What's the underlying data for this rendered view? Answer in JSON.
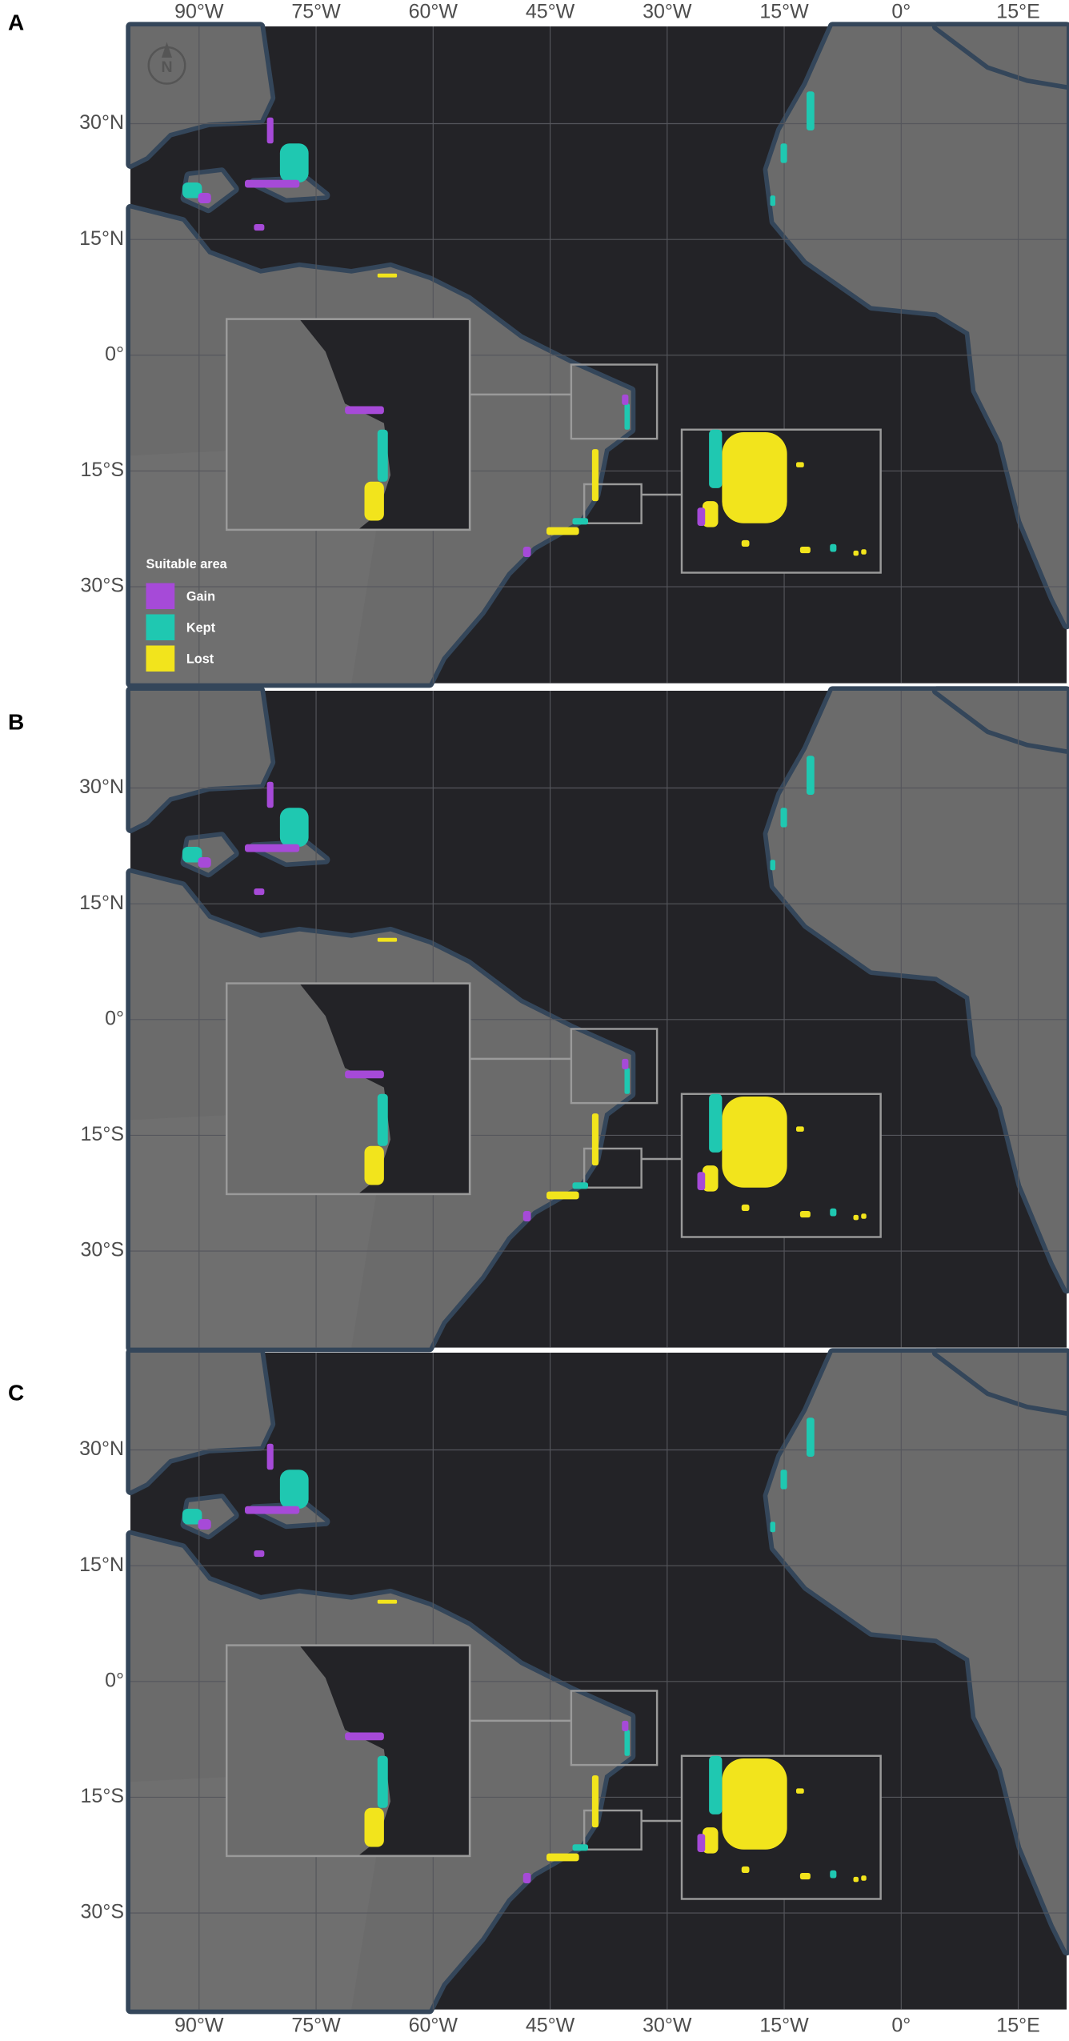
{
  "panels": [
    {
      "label": "A"
    },
    {
      "label": "B"
    },
    {
      "label": "C"
    }
  ],
  "map": {
    "xlim": [
      -98.8,
      21.2
    ],
    "ylim": [
      -42.5,
      42.6
    ],
    "xticks": [
      {
        "value": -90,
        "label": "90°W"
      },
      {
        "value": -75,
        "label": "75°W"
      },
      {
        "value": -60,
        "label": "60°W"
      },
      {
        "value": -45,
        "label": "45°W"
      },
      {
        "value": -30,
        "label": "30°W"
      },
      {
        "value": -15,
        "label": "15°W"
      },
      {
        "value": 0,
        "label": "0°"
      },
      {
        "value": 15,
        "label": "15°E"
      }
    ],
    "yticks": [
      {
        "value": 30,
        "label": "30°N"
      },
      {
        "value": 15,
        "label": "15°N"
      },
      {
        "value": 0,
        "label": "0°"
      },
      {
        "value": -15,
        "label": "15°S"
      },
      {
        "value": -30,
        "label": "30°S"
      }
    ]
  },
  "legend": {
    "title": "Suitable area",
    "items": [
      {
        "name": "Gain",
        "color": "#a64ad8"
      },
      {
        "name": "Kept",
        "color": "#1fc8b1"
      },
      {
        "name": "Lost",
        "color": "#f2e41c"
      }
    ]
  },
  "north_arrow": "N"
}
